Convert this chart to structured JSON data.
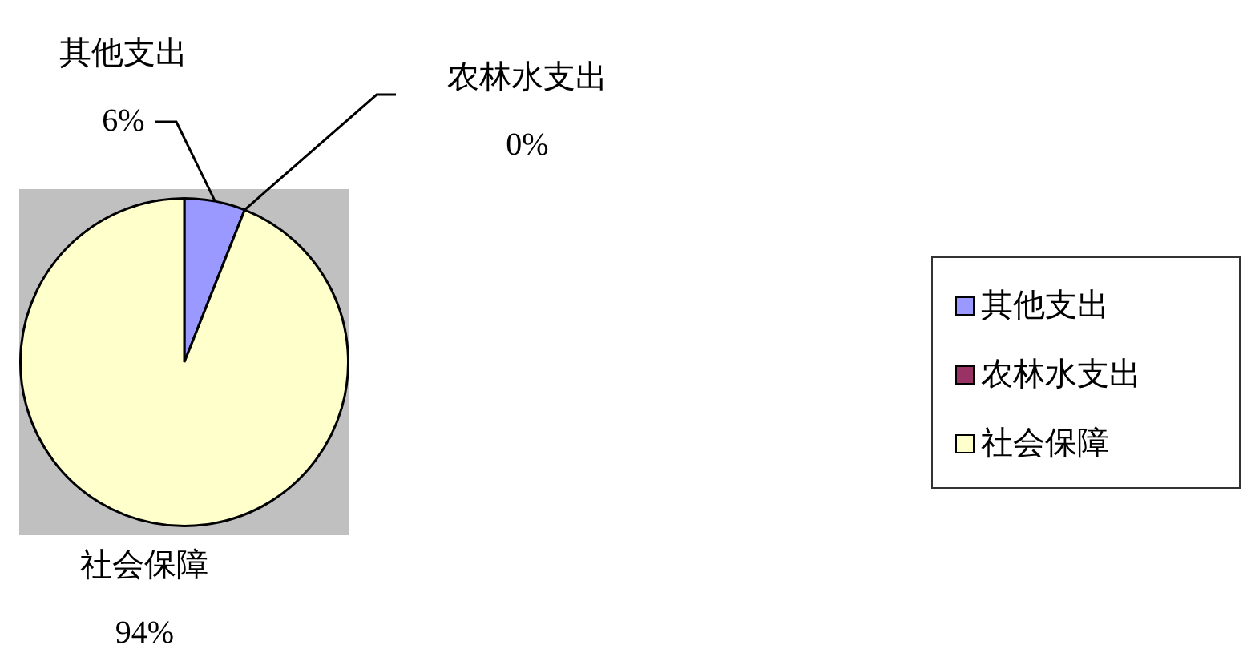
{
  "chart_data": {
    "type": "pie",
    "categories": [
      "其他支出",
      "农林水支出",
      "社会保障"
    ],
    "values": [
      6,
      0,
      94
    ],
    "colors": [
      "#9999ff",
      "#993366",
      "#ffffcc"
    ],
    "value_labels": [
      "6%",
      "0%",
      "94%"
    ],
    "legend": "right"
  }
}
